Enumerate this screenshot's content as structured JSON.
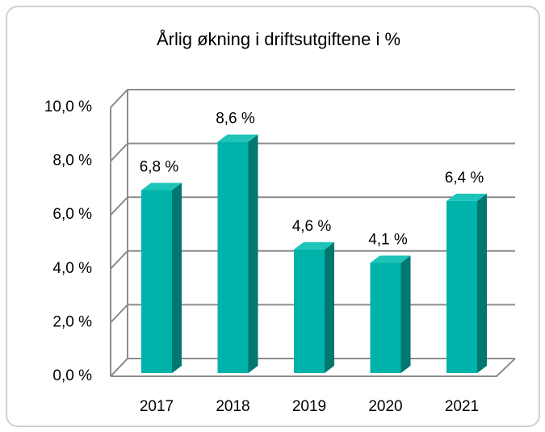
{
  "chart_data": {
    "type": "bar3d",
    "title": "Årlig økning i driftsutgiftene i %",
    "categories": [
      "2017",
      "2018",
      "2019",
      "2020",
      "2021"
    ],
    "values": [
      6.8,
      8.6,
      4.6,
      4.1,
      6.4
    ],
    "value_labels": [
      "6,8 %",
      "8,6 %",
      "4,6 %",
      "4,1 %",
      "6,4 %"
    ],
    "color": "#00b3aa",
    "ylim": [
      0,
      10
    ],
    "yticks": [
      {
        "value": 0,
        "label": "0,0 %"
      },
      {
        "value": 2,
        "label": "2,0 %"
      },
      {
        "value": 4,
        "label": "4,0 %"
      },
      {
        "value": 6,
        "label": "6,0 %"
      },
      {
        "value": 8,
        "label": "8,0 %"
      },
      {
        "value": 10,
        "label": "10,0 %"
      }
    ],
    "grid": true
  }
}
